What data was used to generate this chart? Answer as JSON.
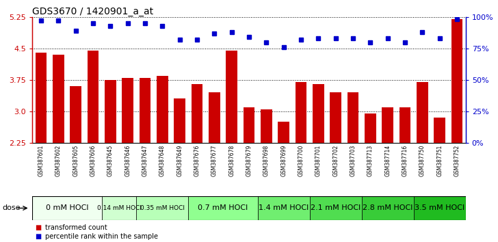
{
  "title": "GDS3670 / 1420901_a_at",
  "samples": [
    "GSM387601",
    "GSM387602",
    "GSM387605",
    "GSM387606",
    "GSM387645",
    "GSM387646",
    "GSM387647",
    "GSM387648",
    "GSM387649",
    "GSM387676",
    "GSM387677",
    "GSM387678",
    "GSM387679",
    "GSM387698",
    "GSM387699",
    "GSM387700",
    "GSM387701",
    "GSM387702",
    "GSM387703",
    "GSM387713",
    "GSM387714",
    "GSM387716",
    "GSM387750",
    "GSM387751",
    "GSM387752"
  ],
  "bar_values": [
    4.4,
    4.35,
    3.6,
    4.45,
    3.75,
    3.8,
    3.8,
    3.85,
    3.3,
    3.65,
    3.45,
    4.45,
    3.1,
    3.05,
    2.75,
    3.7,
    3.65,
    3.45,
    3.45,
    2.95,
    3.1,
    3.1,
    3.7,
    2.85,
    5.2
  ],
  "dot_values": [
    97,
    97,
    89,
    95,
    93,
    95,
    95,
    93,
    82,
    82,
    87,
    88,
    84,
    80,
    76,
    82,
    83,
    83,
    83,
    80,
    83,
    80,
    88,
    83,
    98
  ],
  "ylim": [
    2.25,
    5.25
  ],
  "yticks": [
    2.25,
    3.0,
    3.75,
    4.5,
    5.25
  ],
  "right_yticks": [
    0,
    25,
    50,
    75,
    100
  ],
  "right_ylabels": [
    "0%",
    "25%",
    "50%",
    "75%",
    "100%"
  ],
  "dose_groups": [
    {
      "label": "0 mM HOCl",
      "start": 0,
      "end": 4,
      "color": "#f0fff0",
      "fontsize": 8
    },
    {
      "label": "0.14 mM HOCl",
      "start": 4,
      "end": 6,
      "color": "#d0ffd0",
      "fontsize": 6.5
    },
    {
      "label": "0.35 mM HOCl",
      "start": 6,
      "end": 9,
      "color": "#b8ffb8",
      "fontsize": 6.5
    },
    {
      "label": "0.7 mM HOCl",
      "start": 9,
      "end": 13,
      "color": "#90ff90",
      "fontsize": 8
    },
    {
      "label": "1.4 mM HOCl",
      "start": 13,
      "end": 16,
      "color": "#70ee70",
      "fontsize": 8
    },
    {
      "label": "2.1 mM HOCl",
      "start": 16,
      "end": 19,
      "color": "#50dd50",
      "fontsize": 8
    },
    {
      "label": "2.8 mM HOCl",
      "start": 19,
      "end": 22,
      "color": "#38cc38",
      "fontsize": 8
    },
    {
      "label": "3.5 mM HOCl",
      "start": 22,
      "end": 25,
      "color": "#20bb20",
      "fontsize": 8
    }
  ],
  "bar_color": "#cc0000",
  "dot_color": "#0000cc",
  "title_fontsize": 10,
  "legend_red": "transformed count",
  "legend_blue": "percentile rank within the sample"
}
